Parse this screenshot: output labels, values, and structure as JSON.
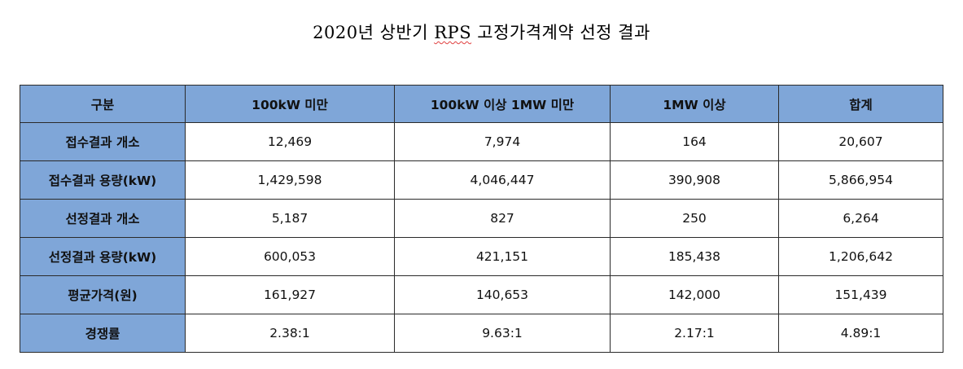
{
  "document": {
    "title_prefix": "2020년 상반기 ",
    "title_rps": "RPS",
    "title_suffix": " 고정가격계약 선정 결과"
  },
  "table": {
    "columns": [
      "구분",
      "100kW 미만",
      "100kW 이상 1MW 미만",
      "1MW 이상",
      "합계"
    ],
    "rows": [
      {
        "label": "접수결과 개소",
        "values": [
          "12,469",
          "7,974",
          "164",
          "20,607"
        ]
      },
      {
        "label": "접수결과 용량(kW)",
        "values": [
          "1,429,598",
          "4,046,447",
          "390,908",
          "5,866,954"
        ]
      },
      {
        "label": "선정결과 개소",
        "values": [
          "5,187",
          "827",
          "250",
          "6,264"
        ]
      },
      {
        "label": "선정결과 용량(kW)",
        "values": [
          "600,053",
          "421,151",
          "185,438",
          "1,206,642"
        ]
      },
      {
        "label": "평균가격(원)",
        "values": [
          "161,927",
          "140,653",
          "142,000",
          "151,439"
        ]
      },
      {
        "label": "경쟁률",
        "values": [
          "2.38:1",
          "9.63:1",
          "2.17:1",
          "4.89:1"
        ]
      }
    ],
    "header_color": "#7fa6d8"
  }
}
